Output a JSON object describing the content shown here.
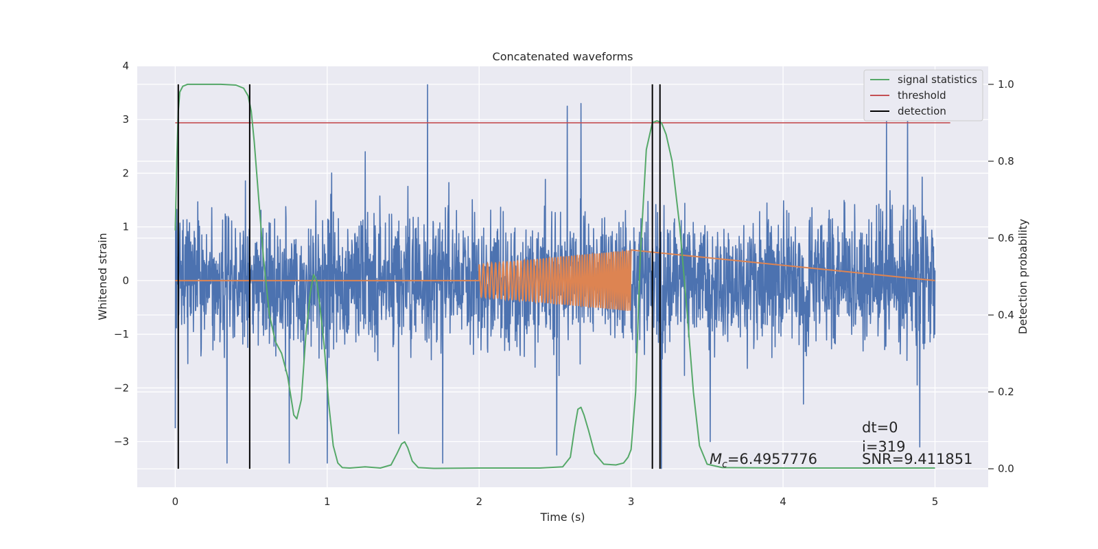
{
  "chart_data": {
    "type": "line",
    "title": "Concatenated waveforms",
    "xlabel": "Time (s)",
    "ylabel": "Whitened strain",
    "y2label": "Detection probability",
    "xlim": [
      -0.25,
      5.35
    ],
    "ylim": [
      -3.85,
      4.0
    ],
    "y2lim": [
      -0.048,
      1.048
    ],
    "x_ticks": [
      0,
      1,
      2,
      3,
      4,
      5
    ],
    "y_ticks": [
      -3,
      -2,
      -1,
      0,
      1,
      2,
      3,
      4
    ],
    "y2_ticks": [
      0.0,
      0.2,
      0.4,
      0.6,
      0.8,
      1.0
    ],
    "y2_tick_labels": [
      "0.0",
      "0.2",
      "0.4",
      "0.6",
      "0.8",
      "1.0"
    ],
    "x_tick_labels": [
      "0",
      "1",
      "2",
      "3",
      "4",
      "5"
    ],
    "y_tick_labels": [
      "−3",
      "−2",
      "−1",
      "0",
      "1",
      "2",
      "3",
      "4"
    ],
    "grid": true,
    "legend_position": "top-right",
    "legend": [
      {
        "label": "signal statistics",
        "color": "#55a868"
      },
      {
        "label": "threshold",
        "color": "#c44e52"
      },
      {
        "label": "detection",
        "color": "#000000"
      }
    ],
    "series": [
      {
        "name": "whitened strain",
        "color": "#4c72b0",
        "description_kind": "noise",
        "x_range": [
          0,
          5
        ],
        "typical_amplitude": 1.8,
        "spikes": [
          {
            "x": 0.0,
            "y": -2.75
          },
          {
            "x": 0.34,
            "y": -3.4
          },
          {
            "x": 0.75,
            "y": -3.4
          },
          {
            "x": 1.0,
            "y": -3.4
          },
          {
            "x": 1.25,
            "y": 2.4
          },
          {
            "x": 1.47,
            "y": -2.85
          },
          {
            "x": 1.66,
            "y": 3.65
          },
          {
            "x": 1.76,
            "y": -3.4
          },
          {
            "x": 2.51,
            "y": -3.25
          },
          {
            "x": 2.58,
            "y": 3.25
          },
          {
            "x": 2.67,
            "y": 3.3
          },
          {
            "x": 3.2,
            "y": -3.5
          },
          {
            "x": 3.52,
            "y": -3.0
          },
          {
            "x": 4.82,
            "y": 3.3
          },
          {
            "x": 4.9,
            "y": -3.1
          },
          {
            "x": 4.68,
            "y": 3.05
          }
        ]
      },
      {
        "name": "injected waveform",
        "color": "#dd8452",
        "chirp_start": 2.0,
        "chirp_end": 3.0,
        "amp_start": 0.3,
        "amp_end": 0.57
      },
      {
        "name": "signal statistics",
        "color": "#55a868",
        "axis": "right",
        "x": [
          0.0,
          0.01,
          0.02,
          0.03,
          0.05,
          0.08,
          0.15,
          0.3,
          0.4,
          0.45,
          0.48,
          0.5,
          0.52,
          0.55,
          0.58,
          0.62,
          0.66,
          0.7,
          0.74,
          0.78,
          0.8,
          0.83,
          0.86,
          0.89,
          0.91,
          0.93,
          0.95,
          0.98,
          1.01,
          1.04,
          1.07,
          1.1,
          1.15,
          1.25,
          1.35,
          1.42,
          1.46,
          1.49,
          1.51,
          1.53,
          1.56,
          1.6,
          1.7,
          2.0,
          2.4,
          2.55,
          2.6,
          2.63,
          2.65,
          2.67,
          2.69,
          2.72,
          2.76,
          2.82,
          2.9,
          2.95,
          2.98,
          3.0,
          3.03,
          3.06,
          3.1,
          3.14,
          3.17,
          3.2,
          3.23,
          3.27,
          3.32,
          3.37,
          3.41,
          3.45,
          3.5,
          3.6,
          4.0,
          5.0
        ],
        "y": [
          0.62,
          0.8,
          0.93,
          0.98,
          0.995,
          1.0,
          1.0,
          1.0,
          0.998,
          0.99,
          0.97,
          0.93,
          0.85,
          0.7,
          0.55,
          0.4,
          0.33,
          0.3,
          0.24,
          0.14,
          0.13,
          0.18,
          0.35,
          0.46,
          0.505,
          0.49,
          0.43,
          0.32,
          0.17,
          0.06,
          0.015,
          0.003,
          0.002,
          0.005,
          0.002,
          0.01,
          0.04,
          0.065,
          0.07,
          0.055,
          0.02,
          0.003,
          0.001,
          0.002,
          0.002,
          0.005,
          0.03,
          0.11,
          0.155,
          0.16,
          0.14,
          0.1,
          0.04,
          0.012,
          0.01,
          0.015,
          0.03,
          0.05,
          0.2,
          0.55,
          0.83,
          0.9,
          0.905,
          0.9,
          0.87,
          0.8,
          0.63,
          0.4,
          0.2,
          0.06,
          0.012,
          0.003,
          0.002,
          0.002
        ]
      },
      {
        "name": "threshold",
        "color": "#c44e52",
        "axis": "right",
        "x": [
          0.0,
          5.1
        ],
        "y": [
          0.9,
          0.9
        ]
      },
      {
        "name": "detection",
        "color": "#000000",
        "axis": "right",
        "vertical_lines_x": [
          0.02,
          0.49,
          3.14,
          3.19
        ],
        "ymin": 0.0,
        "ymax": 1.0
      }
    ],
    "annotations": {
      "dt": "dt=0",
      "i": "i=319",
      "snr": "SNR=9.411851",
      "mc_symbol": "M",
      "mc_sub": "c",
      "mc_value": "=6.4957776"
    }
  }
}
